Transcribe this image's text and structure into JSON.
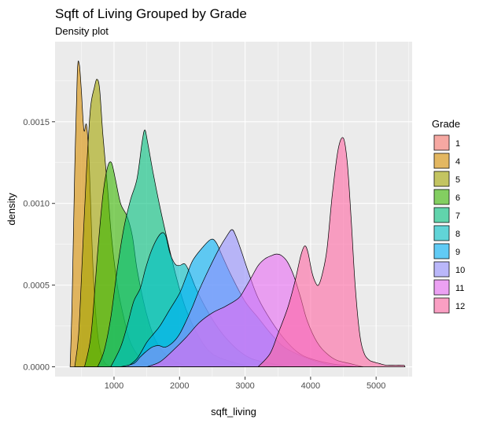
{
  "chart_data": {
    "type": "area",
    "title": "Sqft of Living Grouped by Grade",
    "subtitle": "Density plot",
    "xlabel": "sqft_living",
    "ylabel": "density",
    "xlim": [
      100,
      5550
    ],
    "ylim": [
      -6e-05,
      0.00199
    ],
    "x_ticks": [
      1000,
      2000,
      3000,
      4000,
      5000
    ],
    "x_tick_labels": [
      "1000",
      "2000",
      "3000",
      "4000",
      "5000"
    ],
    "y_ticks": [
      0.0,
      0.0005,
      0.001,
      0.0015
    ],
    "y_tick_labels": [
      "0.0000",
      "0.0005",
      "0.0010",
      "0.0015"
    ],
    "grid": true,
    "legend": {
      "title": "Grade",
      "position": "right"
    },
    "series": [
      {
        "name": "1",
        "color": "#F8766D",
        "points": []
      },
      {
        "name": "4",
        "color": "#D89000",
        "points": [
          [
            330,
            0
          ],
          [
            360,
            0.0004
          ],
          [
            400,
            0.0012
          ],
          [
            440,
            0.0018
          ],
          [
            470,
            0.00185
          ],
          [
            500,
            0.0017
          ],
          [
            540,
            0.00145
          ],
          [
            580,
            0.00148
          ],
          [
            620,
            0.00125
          ],
          [
            680,
            0.0006
          ],
          [
            750,
            0.0002
          ],
          [
            850,
            3e-05
          ],
          [
            1000,
            0.0
          ]
        ]
      },
      {
        "name": "5",
        "color": "#A3A500",
        "points": [
          [
            400,
            0
          ],
          [
            460,
            0.0002
          ],
          [
            520,
            0.0007
          ],
          [
            580,
            0.0012
          ],
          [
            640,
            0.00158
          ],
          [
            700,
            0.00171
          ],
          [
            740,
            0.00176
          ],
          [
            780,
            0.0017
          ],
          [
            830,
            0.00142
          ],
          [
            900,
            0.0011
          ],
          [
            960,
            0.0008
          ],
          [
            1050,
            0.0005
          ],
          [
            1150,
            0.0003
          ],
          [
            1250,
            0.00015
          ],
          [
            1400,
            5e-05
          ],
          [
            1500,
            2e-05
          ],
          [
            1650,
            0.0
          ]
        ]
      },
      {
        "name": "6",
        "color": "#39B600",
        "points": [
          [
            550,
            0
          ],
          [
            650,
            0.0002
          ],
          [
            750,
            0.0007
          ],
          [
            830,
            0.00105
          ],
          [
            900,
            0.00122
          ],
          [
            960,
            0.00125
          ],
          [
            1020,
            0.00115
          ],
          [
            1100,
            0.001
          ],
          [
            1200,
            0.00092
          ],
          [
            1280,
            0.0008
          ],
          [
            1350,
            0.0006
          ],
          [
            1450,
            0.0004
          ],
          [
            1550,
            0.00025
          ],
          [
            1650,
            0.00015
          ],
          [
            1800,
            7e-05
          ],
          [
            2000,
            2e-05
          ],
          [
            2200,
            0.0
          ]
        ]
      },
      {
        "name": "7",
        "color": "#00BF7D",
        "points": [
          [
            750,
            0
          ],
          [
            850,
            0.0001
          ],
          [
            950,
            0.0003
          ],
          [
            1050,
            0.0006
          ],
          [
            1150,
            0.00085
          ],
          [
            1250,
            0.00102
          ],
          [
            1350,
            0.00115
          ],
          [
            1430,
            0.00138
          ],
          [
            1470,
            0.00145
          ],
          [
            1510,
            0.00138
          ],
          [
            1600,
            0.00118
          ],
          [
            1700,
            0.00098
          ],
          [
            1800,
            0.0008
          ],
          [
            1950,
            0.00055
          ],
          [
            2100,
            0.00035
          ],
          [
            2300,
            0.00018
          ],
          [
            2500,
            8e-05
          ],
          [
            2800,
            3e-05
          ],
          [
            3100,
            0.0
          ]
        ]
      },
      {
        "name": "8",
        "color": "#00BFC4",
        "points": [
          [
            950,
            0
          ],
          [
            1100,
            0.00012
          ],
          [
            1200,
            0.00025
          ],
          [
            1300,
            0.0004
          ],
          [
            1400,
            0.00048
          ],
          [
            1480,
            0.0006
          ],
          [
            1560,
            0.0007
          ],
          [
            1650,
            0.00078
          ],
          [
            1730,
            0.00082
          ],
          [
            1790,
            0.0008
          ],
          [
            1850,
            0.0007
          ],
          [
            1930,
            0.00063
          ],
          [
            2000,
            0.00062
          ],
          [
            2080,
            0.00063
          ],
          [
            2150,
            0.00058
          ],
          [
            2250,
            0.00048
          ],
          [
            2400,
            0.00036
          ],
          [
            2550,
            0.00026
          ],
          [
            2700,
            0.00018
          ],
          [
            2900,
            0.0001
          ],
          [
            3100,
            5e-05
          ],
          [
            3400,
            2e-05
          ],
          [
            3700,
            0.0
          ]
        ]
      },
      {
        "name": "9",
        "color": "#00B0F6",
        "points": [
          [
            1200,
            0
          ],
          [
            1350,
            5e-05
          ],
          [
            1500,
            0.00015
          ],
          [
            1600,
            0.0002
          ],
          [
            1700,
            0.00025
          ],
          [
            1850,
            0.00035
          ],
          [
            2000,
            0.00045
          ],
          [
            2100,
            0.00055
          ],
          [
            2200,
            0.00065
          ],
          [
            2350,
            0.00073
          ],
          [
            2480,
            0.00078
          ],
          [
            2560,
            0.00076
          ],
          [
            2650,
            0.00068
          ],
          [
            2800,
            0.00055
          ],
          [
            3000,
            0.0004
          ],
          [
            3200,
            0.0003
          ],
          [
            3400,
            0.0002
          ],
          [
            3600,
            0.00012
          ],
          [
            3900,
            6e-05
          ],
          [
            4200,
            2e-05
          ],
          [
            4500,
            0.0
          ]
        ]
      },
      {
        "name": "10",
        "color": "#9590FF",
        "points": [
          [
            1100,
            0
          ],
          [
            1300,
            2e-05
          ],
          [
            1400,
            6e-05
          ],
          [
            1480,
            9e-05
          ],
          [
            1580,
            0.00012
          ],
          [
            1680,
            0.00013
          ],
          [
            1780,
            0.00012
          ],
          [
            1900,
            0.00015
          ],
          [
            2000,
            0.0002
          ],
          [
            2100,
            0.00028
          ],
          [
            2200,
            0.00037
          ],
          [
            2300,
            0.00047
          ],
          [
            2450,
            0.0006
          ],
          [
            2600,
            0.00072
          ],
          [
            2720,
            0.0008
          ],
          [
            2800,
            0.00084
          ],
          [
            2860,
            0.0008
          ],
          [
            2950,
            0.0007
          ],
          [
            3050,
            0.00058
          ],
          [
            3200,
            0.00042
          ],
          [
            3400,
            0.00028
          ],
          [
            3600,
            0.00017
          ],
          [
            3800,
            9e-05
          ],
          [
            4000,
            5e-05
          ],
          [
            4300,
            2e-05
          ],
          [
            4700,
            0.0
          ]
        ]
      },
      {
        "name": "11",
        "color": "#E76BF3",
        "points": [
          [
            1500,
            0
          ],
          [
            1700,
            3e-05
          ],
          [
            1900,
            0.0001
          ],
          [
            2100,
            0.00018
          ],
          [
            2300,
            0.00027
          ],
          [
            2500,
            0.00033
          ],
          [
            2700,
            0.00037
          ],
          [
            2900,
            0.00042
          ],
          [
            3000,
            0.00048
          ],
          [
            3100,
            0.00055
          ],
          [
            3200,
            0.00062
          ],
          [
            3300,
            0.00066
          ],
          [
            3400,
            0.00068
          ],
          [
            3480,
            0.00069
          ],
          [
            3560,
            0.00068
          ],
          [
            3650,
            0.00064
          ],
          [
            3750,
            0.00055
          ],
          [
            3850,
            0.00042
          ],
          [
            3950,
            0.00028
          ],
          [
            4100,
            0.00015
          ],
          [
            4250,
            8e-05
          ],
          [
            4400,
            4e-05
          ],
          [
            4600,
            2e-05
          ],
          [
            4800,
            0.0
          ]
        ]
      },
      {
        "name": "12",
        "color": "#FF67A4",
        "points": [
          [
            3200,
            0
          ],
          [
            3380,
            8e-05
          ],
          [
            3500,
            0.0002
          ],
          [
            3650,
            0.00036
          ],
          [
            3760,
            0.00052
          ],
          [
            3850,
            0.00068
          ],
          [
            3910,
            0.00074
          ],
          [
            3960,
            0.0007
          ],
          [
            4020,
            0.00058
          ],
          [
            4070,
            0.00052
          ],
          [
            4120,
            0.0005
          ],
          [
            4180,
            0.00057
          ],
          [
            4250,
            0.00072
          ],
          [
            4330,
            0.00105
          ],
          [
            4420,
            0.00133
          ],
          [
            4500,
            0.0014
          ],
          [
            4560,
            0.00125
          ],
          [
            4620,
            0.0009
          ],
          [
            4680,
            0.0005
          ],
          [
            4750,
            0.0002
          ],
          [
            4820,
            8e-05
          ],
          [
            4900,
            4e-05
          ],
          [
            4960,
            3e-05
          ],
          [
            5050,
            2e-05
          ],
          [
            5150,
            1e-05
          ],
          [
            5300,
            1e-05
          ],
          [
            5420,
            1e-05
          ],
          [
            5440,
            0.0
          ]
        ]
      }
    ]
  }
}
